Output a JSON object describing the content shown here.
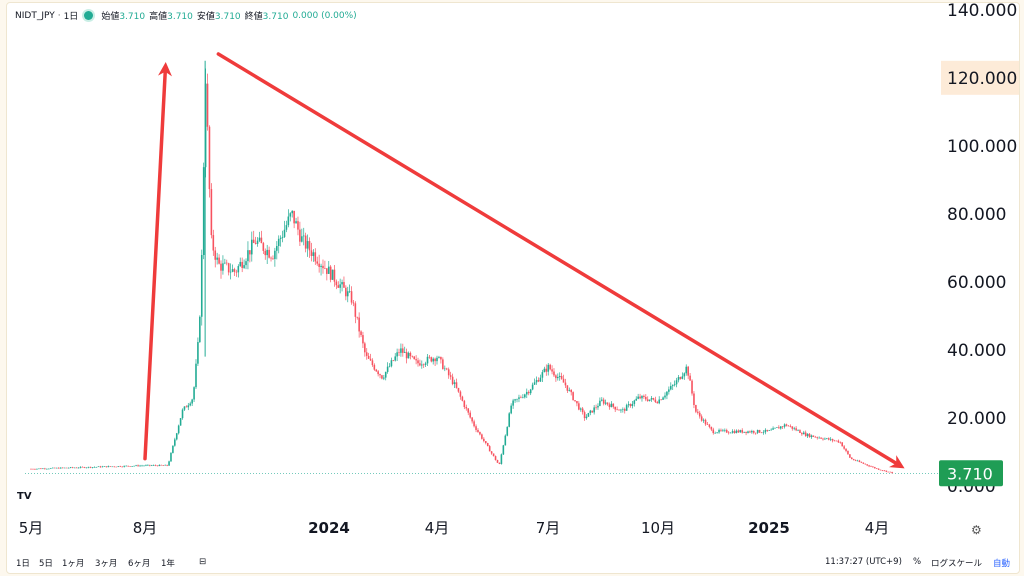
{
  "header": {
    "symbol": "NIDT_JPY",
    "sep": "·",
    "interval": "1日",
    "ohlc": [
      {
        "label": "始値",
        "value": "3.710"
      },
      {
        "label": "高値",
        "value": "3.710"
      },
      {
        "label": "安値",
        "value": "3.710"
      },
      {
        "label": "終値",
        "value": "3.710"
      }
    ],
    "change": "0.000 (0.00%)"
  },
  "bottom_bar": {
    "ranges": [
      "1日",
      "5日",
      "1ヶ月",
      "3ヶ月",
      "6ヶ月",
      "1年"
    ],
    "time": "11:37:27 (UTC+9)",
    "percent": "%",
    "log": "ログスケール",
    "auto": "自動"
  },
  "colors": {
    "up": "#22ab94",
    "down": "#f7525f",
    "arrow": "#ef3b3b",
    "price_label": "#1f9d55",
    "highlight": "#fdebd8"
  },
  "icons": {
    "logo": "tradingview-logo-icon",
    "settings": "gear-icon",
    "calendar": "calendar-range-icon"
  },
  "chart_data": {
    "type": "candlestick",
    "y_ticks": [
      "140.000",
      "120.000",
      "100.000",
      "80.000",
      "60.000",
      "40.000",
      "20.000",
      "0.000"
    ],
    "y_tick_values": [
      140,
      120,
      100,
      80,
      60,
      40,
      20,
      0
    ],
    "ylim": [
      -6.5,
      142
    ],
    "highlighted_tick": "120.000",
    "last_price_label": "3.710",
    "last_price": 3.71,
    "x_ticks": [
      {
        "label": "5月",
        "date": "2023-05-01",
        "bold": false
      },
      {
        "label": "8月",
        "date": "2023-08-01",
        "bold": false
      },
      {
        "label": "2024",
        "date": "2024-01-01",
        "bold": true
      },
      {
        "label": "4月",
        "date": "2024-04-01",
        "bold": false
      },
      {
        "label": "7月",
        "date": "2024-07-01",
        "bold": false
      },
      {
        "label": "10月",
        "date": "2024-10-01",
        "bold": false
      },
      {
        "label": "2025",
        "date": "2025-01-01",
        "bold": true
      },
      {
        "label": "4月",
        "date": "2025-04-01",
        "bold": false
      }
    ],
    "series_close_approx": [
      [
        "2023-05-01",
        5
      ],
      [
        "2023-08-01",
        6
      ],
      [
        "2023-08-20",
        6
      ],
      [
        "2023-09-01",
        22
      ],
      [
        "2023-09-10",
        26
      ],
      [
        "2023-09-15",
        45
      ],
      [
        "2023-09-18",
        75
      ],
      [
        "2023-09-20",
        125
      ],
      [
        "2023-09-25",
        72
      ],
      [
        "2023-10-01",
        65
      ],
      [
        "2023-10-15",
        63
      ],
      [
        "2023-11-01",
        72
      ],
      [
        "2023-11-15",
        68
      ],
      [
        "2023-12-01",
        80
      ],
      [
        "2023-12-10",
        72
      ],
      [
        "2024-01-01",
        63
      ],
      [
        "2024-01-20",
        55
      ],
      [
        "2024-02-01",
        38
      ],
      [
        "2024-02-15",
        32
      ],
      [
        "2024-03-01",
        40
      ],
      [
        "2024-03-15",
        36
      ],
      [
        "2024-04-01",
        38
      ],
      [
        "2024-04-15",
        30
      ],
      [
        "2024-05-01",
        18
      ],
      [
        "2024-05-15",
        10
      ],
      [
        "2024-05-22",
        6
      ],
      [
        "2024-06-01",
        24
      ],
      [
        "2024-06-15",
        28
      ],
      [
        "2024-07-01",
        35
      ],
      [
        "2024-07-15",
        30
      ],
      [
        "2024-08-01",
        20
      ],
      [
        "2024-08-15",
        25
      ],
      [
        "2024-09-01",
        22
      ],
      [
        "2024-09-15",
        26
      ],
      [
        "2024-10-01",
        25
      ],
      [
        "2024-10-15",
        30
      ],
      [
        "2024-10-25",
        35
      ],
      [
        "2024-11-01",
        22
      ],
      [
        "2024-11-15",
        16
      ],
      [
        "2024-12-01",
        16
      ],
      [
        "2025-01-01",
        16
      ],
      [
        "2025-01-15",
        18
      ],
      [
        "2025-02-01",
        15
      ],
      [
        "2025-03-01",
        13
      ],
      [
        "2025-03-10",
        8
      ],
      [
        "2025-04-01",
        5
      ],
      [
        "2025-04-15",
        3.71
      ]
    ],
    "annotations": [
      {
        "type": "arrow",
        "from": [
          "2023-08-01",
          8
        ],
        "to": [
          "2023-08-18",
          123
        ]
      },
      {
        "type": "arrow",
        "from": [
          "2023-10-01",
          127
        ],
        "to": [
          "2025-04-20",
          6
        ]
      }
    ],
    "grid": false,
    "legend": "none"
  }
}
